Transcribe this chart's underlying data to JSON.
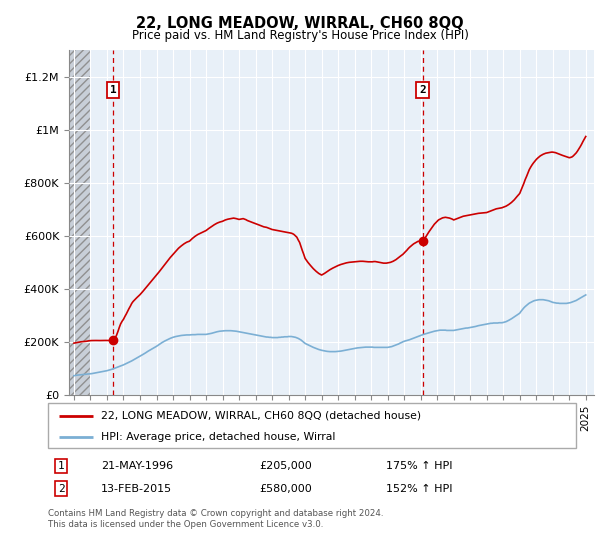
{
  "title": "22, LONG MEADOW, WIRRAL, CH60 8QQ",
  "subtitle": "Price paid vs. HM Land Registry's House Price Index (HPI)",
  "legend_line1": "22, LONG MEADOW, WIRRAL, CH60 8QQ (detached house)",
  "legend_line2": "HPI: Average price, detached house, Wirral",
  "annotation_footer": "Contains HM Land Registry data © Crown copyright and database right 2024.\nThis data is licensed under the Open Government Licence v3.0.",
  "point1_date": "21-MAY-1996",
  "point1_price": 205000,
  "point1_hpi_pct": "175%",
  "point1_year": 1996.38,
  "point2_date": "13-FEB-2015",
  "point2_price": 580000,
  "point2_hpi_pct": "152%",
  "point2_year": 2015.12,
  "red_color": "#cc0000",
  "blue_color": "#7bafd4",
  "chart_bg_color": "#e8f0f8",
  "hatch_color": "#b0b8c8",
  "ylim_min": 0,
  "ylim_max": 1300000,
  "xlim_min": 1993.7,
  "xlim_max": 2025.5,
  "hatch_end": 1995.0,
  "red_line_x": [
    1994.0,
    1994.08,
    1994.17,
    1994.25,
    1994.33,
    1994.42,
    1994.5,
    1994.58,
    1994.67,
    1994.75,
    1994.83,
    1994.92,
    1995.0,
    1995.08,
    1995.17,
    1995.25,
    1995.33,
    1995.42,
    1995.5,
    1995.58,
    1995.67,
    1995.75,
    1995.83,
    1995.92,
    1996.0,
    1996.08,
    1996.17,
    1996.25,
    1996.33,
    1996.38,
    1996.5,
    1996.58,
    1996.67,
    1996.75,
    1996.83,
    1996.92,
    1997.0,
    1997.08,
    1997.17,
    1997.25,
    1997.33,
    1997.42,
    1997.5,
    1997.58,
    1997.67,
    1997.75,
    1997.83,
    1997.92,
    1998.0,
    1998.17,
    1998.33,
    1998.5,
    1998.67,
    1998.83,
    1999.0,
    1999.17,
    1999.33,
    1999.5,
    1999.67,
    1999.83,
    2000.0,
    2000.17,
    2000.33,
    2000.5,
    2000.67,
    2000.83,
    2001.0,
    2001.17,
    2001.33,
    2001.5,
    2001.67,
    2001.83,
    2002.0,
    2002.17,
    2002.33,
    2002.5,
    2002.67,
    2002.83,
    2003.0,
    2003.17,
    2003.33,
    2003.5,
    2003.67,
    2003.83,
    2004.0,
    2004.08,
    2004.17,
    2004.25,
    2004.33,
    2004.42,
    2004.5,
    2004.58,
    2004.67,
    2004.75,
    2004.83,
    2004.92,
    2005.0,
    2005.08,
    2005.17,
    2005.25,
    2005.33,
    2005.42,
    2005.5,
    2005.58,
    2005.67,
    2005.75,
    2005.83,
    2005.92,
    2006.0,
    2006.08,
    2006.17,
    2006.25,
    2006.33,
    2006.42,
    2006.5,
    2006.58,
    2006.67,
    2006.75,
    2006.83,
    2006.92,
    2007.0,
    2007.08,
    2007.17,
    2007.25,
    2007.33,
    2007.42,
    2007.5,
    2007.58,
    2007.67,
    2007.75,
    2007.83,
    2007.92,
    2008.0,
    2008.17,
    2008.33,
    2008.5,
    2008.67,
    2008.83,
    2009.0,
    2009.17,
    2009.33,
    2009.5,
    2009.67,
    2009.83,
    2010.0,
    2010.17,
    2010.33,
    2010.5,
    2010.67,
    2010.83,
    2011.0,
    2011.17,
    2011.33,
    2011.5,
    2011.67,
    2011.83,
    2012.0,
    2012.08,
    2012.17,
    2012.25,
    2012.33,
    2012.42,
    2012.5,
    2012.58,
    2012.67,
    2012.75,
    2012.83,
    2012.92,
    2013.0,
    2013.08,
    2013.17,
    2013.25,
    2013.33,
    2013.42,
    2013.5,
    2013.58,
    2013.67,
    2013.75,
    2013.83,
    2013.92,
    2014.0,
    2014.08,
    2014.17,
    2014.25,
    2014.33,
    2014.42,
    2014.5,
    2014.58,
    2014.67,
    2014.75,
    2014.83,
    2014.92,
    2015.0,
    2015.12,
    2015.25,
    2015.33,
    2015.5,
    2015.67,
    2015.83,
    2016.0,
    2016.08,
    2016.17,
    2016.25,
    2016.33,
    2016.42,
    2016.5,
    2016.58,
    2016.67,
    2016.75,
    2016.83,
    2016.92,
    2017.0,
    2017.08,
    2017.17,
    2017.25,
    2017.33,
    2017.42,
    2017.5,
    2017.58,
    2017.67,
    2017.75,
    2017.83,
    2017.92,
    2018.0,
    2018.17,
    2018.33,
    2018.5,
    2018.67,
    2018.83,
    2019.0,
    2019.08,
    2019.17,
    2019.25,
    2019.33,
    2019.42,
    2019.5,
    2019.58,
    2019.67,
    2019.75,
    2019.83,
    2019.92,
    2020.0,
    2020.17,
    2020.33,
    2020.5,
    2020.67,
    2020.83,
    2021.0,
    2021.08,
    2021.17,
    2021.25,
    2021.33,
    2021.42,
    2021.5,
    2021.58,
    2021.67,
    2021.75,
    2021.83,
    2021.92,
    2022.0,
    2022.08,
    2022.17,
    2022.25,
    2022.33,
    2022.42,
    2022.5,
    2022.58,
    2022.67,
    2022.75,
    2022.83,
    2022.92,
    2023.0,
    2023.08,
    2023.17,
    2023.25,
    2023.33,
    2023.42,
    2023.5,
    2023.58,
    2023.67,
    2023.75,
    2023.83,
    2023.92,
    2024.0,
    2024.08,
    2024.17,
    2024.25,
    2024.33,
    2024.42,
    2024.5,
    2024.58,
    2024.67,
    2024.75,
    2024.83,
    2024.92,
    2025.0
  ],
  "red_line_y": [
    195000,
    196000,
    197000,
    198000,
    199000,
    200000,
    200500,
    201000,
    201500,
    202000,
    203000,
    204000,
    204500,
    204800,
    205000,
    205200,
    205000,
    204800,
    204600,
    204800,
    205000,
    205200,
    205300,
    205200,
    205000,
    205000,
    205000,
    205000,
    205000,
    205000,
    215000,
    225000,
    240000,
    255000,
    268000,
    278000,
    285000,
    295000,
    305000,
    315000,
    325000,
    335000,
    345000,
    352000,
    358000,
    363000,
    368000,
    373000,
    378000,
    390000,
    402000,
    415000,
    428000,
    440000,
    452000,
    465000,
    478000,
    492000,
    506000,
    518000,
    530000,
    542000,
    553000,
    562000,
    570000,
    576000,
    580000,
    590000,
    598000,
    605000,
    610000,
    615000,
    620000,
    628000,
    635000,
    642000,
    648000,
    652000,
    655000,
    660000,
    663000,
    665000,
    667000,
    665000,
    662000,
    663000,
    664000,
    665000,
    663000,
    661000,
    658000,
    656000,
    654000,
    652000,
    650000,
    648000,
    646000,
    644000,
    642000,
    640000,
    638000,
    636000,
    634000,
    633000,
    632000,
    630000,
    628000,
    626000,
    624000,
    623000,
    622000,
    621000,
    620000,
    619000,
    618000,
    617000,
    616000,
    615000,
    614000,
    613000,
    612000,
    611000,
    610000,
    608000,
    605000,
    600000,
    595000,
    585000,
    575000,
    560000,
    545000,
    530000,
    515000,
    500000,
    488000,
    476000,
    466000,
    458000,
    452000,
    458000,
    465000,
    472000,
    478000,
    483000,
    488000,
    492000,
    495000,
    498000,
    500000,
    501000,
    502000,
    503000,
    504000,
    504000,
    503000,
    502000,
    502000,
    502000,
    503000,
    503000,
    502000,
    501000,
    500000,
    499000,
    498000,
    497000,
    497000,
    497000,
    498000,
    499000,
    500000,
    502000,
    504000,
    507000,
    510000,
    514000,
    518000,
    522000,
    526000,
    530000,
    535000,
    540000,
    546000,
    552000,
    557000,
    562000,
    566000,
    570000,
    573000,
    576000,
    579000,
    580000,
    580000,
    580000,
    590000,
    598000,
    615000,
    630000,
    644000,
    655000,
    660000,
    663000,
    666000,
    668000,
    669000,
    670000,
    669000,
    668000,
    667000,
    665000,
    663000,
    660000,
    662000,
    664000,
    666000,
    668000,
    670000,
    672000,
    674000,
    675000,
    676000,
    677000,
    678000,
    679000,
    681000,
    683000,
    685000,
    686000,
    687000,
    688000,
    690000,
    692000,
    694000,
    696000,
    698000,
    700000,
    702000,
    703000,
    704000,
    705000,
    706000,
    708000,
    712000,
    718000,
    726000,
    736000,
    748000,
    760000,
    772000,
    785000,
    798000,
    812000,
    825000,
    838000,
    850000,
    860000,
    868000,
    875000,
    882000,
    888000,
    893000,
    898000,
    902000,
    905000,
    908000,
    910000,
    912000,
    913000,
    914000,
    915000,
    916000,
    916000,
    915000,
    914000,
    912000,
    910000,
    908000,
    906000,
    904000,
    902000,
    900000,
    898000,
    896000,
    895000,
    896000,
    898000,
    902000,
    907000,
    913000,
    920000,
    928000,
    937000,
    946000,
    956000,
    966000,
    975000
  ],
  "blue_line_x": [
    1994.0,
    1994.08,
    1994.17,
    1994.25,
    1994.33,
    1994.42,
    1994.5,
    1994.58,
    1994.67,
    1994.75,
    1994.83,
    1994.92,
    1995.0,
    1995.08,
    1995.17,
    1995.25,
    1995.33,
    1995.42,
    1995.5,
    1995.58,
    1995.67,
    1995.75,
    1995.83,
    1995.92,
    1996.0,
    1996.17,
    1996.33,
    1996.5,
    1996.67,
    1996.83,
    1997.0,
    1997.17,
    1997.33,
    1997.5,
    1997.67,
    1997.83,
    1998.0,
    1998.17,
    1998.33,
    1998.5,
    1998.67,
    1998.83,
    1999.0,
    1999.17,
    1999.33,
    1999.5,
    1999.67,
    1999.83,
    2000.0,
    2000.17,
    2000.33,
    2000.5,
    2000.67,
    2000.83,
    2001.0,
    2001.17,
    2001.33,
    2001.5,
    2001.67,
    2001.83,
    2002.0,
    2002.17,
    2002.33,
    2002.5,
    2002.67,
    2002.83,
    2003.0,
    2003.17,
    2003.33,
    2003.5,
    2003.67,
    2003.83,
    2004.0,
    2004.08,
    2004.17,
    2004.25,
    2004.33,
    2004.42,
    2004.5,
    2004.58,
    2004.67,
    2004.75,
    2004.83,
    2004.92,
    2005.0,
    2005.08,
    2005.17,
    2005.25,
    2005.33,
    2005.42,
    2005.5,
    2005.58,
    2005.67,
    2005.75,
    2005.83,
    2005.92,
    2006.0,
    2006.08,
    2006.17,
    2006.25,
    2006.33,
    2006.42,
    2006.5,
    2006.58,
    2006.67,
    2006.75,
    2006.83,
    2006.92,
    2007.0,
    2007.08,
    2007.17,
    2007.25,
    2007.33,
    2007.42,
    2007.5,
    2007.58,
    2007.67,
    2007.75,
    2007.83,
    2007.92,
    2008.0,
    2008.17,
    2008.33,
    2008.5,
    2008.67,
    2008.83,
    2009.0,
    2009.17,
    2009.33,
    2009.5,
    2009.67,
    2009.83,
    2010.0,
    2010.17,
    2010.33,
    2010.5,
    2010.67,
    2010.83,
    2011.0,
    2011.17,
    2011.33,
    2011.5,
    2011.67,
    2011.83,
    2012.0,
    2012.08,
    2012.17,
    2012.25,
    2012.33,
    2012.42,
    2012.5,
    2012.58,
    2012.67,
    2012.75,
    2012.83,
    2012.92,
    2013.0,
    2013.08,
    2013.17,
    2013.25,
    2013.33,
    2013.42,
    2013.5,
    2013.58,
    2013.67,
    2013.75,
    2013.83,
    2013.92,
    2014.0,
    2014.17,
    2014.33,
    2014.5,
    2014.67,
    2014.83,
    2015.0,
    2015.17,
    2015.33,
    2015.5,
    2015.67,
    2015.83,
    2016.0,
    2016.08,
    2016.17,
    2016.25,
    2016.33,
    2016.42,
    2016.5,
    2016.58,
    2016.67,
    2016.75,
    2016.83,
    2016.92,
    2017.0,
    2017.08,
    2017.17,
    2017.25,
    2017.33,
    2017.42,
    2017.5,
    2017.58,
    2017.67,
    2017.75,
    2017.83,
    2017.92,
    2018.0,
    2018.17,
    2018.33,
    2018.5,
    2018.67,
    2018.83,
    2019.0,
    2019.08,
    2019.17,
    2019.25,
    2019.33,
    2019.42,
    2019.5,
    2019.58,
    2019.67,
    2019.75,
    2019.83,
    2019.92,
    2020.0,
    2020.17,
    2020.33,
    2020.5,
    2020.67,
    2020.83,
    2021.0,
    2021.08,
    2021.17,
    2021.25,
    2021.33,
    2021.42,
    2021.5,
    2021.58,
    2021.67,
    2021.75,
    2021.83,
    2021.92,
    2022.0,
    2022.08,
    2022.17,
    2022.25,
    2022.33,
    2022.42,
    2022.5,
    2022.58,
    2022.67,
    2022.75,
    2022.83,
    2022.92,
    2023.0,
    2023.08,
    2023.17,
    2023.25,
    2023.33,
    2023.42,
    2023.5,
    2023.58,
    2023.67,
    2023.75,
    2023.83,
    2023.92,
    2024.0,
    2024.08,
    2024.17,
    2024.25,
    2024.33,
    2024.42,
    2024.5,
    2024.58,
    2024.67,
    2024.75,
    2024.83,
    2024.92,
    2025.0
  ],
  "blue_line_y": [
    72000,
    73000,
    74000,
    74500,
    75000,
    75500,
    76000,
    76500,
    77000,
    77500,
    78000,
    78500,
    79000,
    80000,
    81000,
    82000,
    83000,
    84000,
    85000,
    86000,
    87000,
    88000,
    89000,
    90000,
    91000,
    94000,
    97000,
    101000,
    105000,
    109000,
    113000,
    118000,
    123000,
    128000,
    134000,
    140000,
    146000,
    152000,
    158000,
    165000,
    171000,
    177000,
    183000,
    190000,
    197000,
    203000,
    208000,
    213000,
    217000,
    220000,
    222000,
    224000,
    225000,
    226000,
    226000,
    227000,
    227000,
    228000,
    228000,
    228000,
    228000,
    230000,
    232000,
    235000,
    238000,
    240000,
    241000,
    242000,
    242000,
    242000,
    241000,
    240000,
    238000,
    237000,
    236000,
    235000,
    234000,
    233000,
    232000,
    231000,
    230000,
    229000,
    228000,
    227000,
    226000,
    225000,
    224000,
    223000,
    222000,
    221000,
    220000,
    219000,
    218000,
    218000,
    217000,
    217000,
    216000,
    216000,
    216000,
    216000,
    216000,
    217000,
    217000,
    218000,
    218000,
    219000,
    219000,
    219000,
    220000,
    220000,
    220000,
    219000,
    218000,
    217000,
    215000,
    213000,
    210000,
    207000,
    203000,
    199000,
    194000,
    189000,
    184000,
    179000,
    175000,
    171000,
    168000,
    166000,
    164000,
    163000,
    163000,
    163000,
    164000,
    165000,
    167000,
    169000,
    171000,
    173000,
    175000,
    177000,
    178000,
    179000,
    180000,
    180000,
    180000,
    180000,
    179000,
    179000,
    179000,
    179000,
    179000,
    179000,
    179000,
    179000,
    179000,
    179000,
    179000,
    180000,
    181000,
    182000,
    184000,
    186000,
    188000,
    190000,
    192000,
    195000,
    197000,
    200000,
    202000,
    205000,
    208000,
    212000,
    216000,
    220000,
    224000,
    228000,
    231000,
    234000,
    237000,
    240000,
    242000,
    243000,
    244000,
    244000,
    244000,
    244000,
    244000,
    243000,
    243000,
    243000,
    243000,
    243000,
    243000,
    244000,
    245000,
    246000,
    247000,
    248000,
    249000,
    250000,
    251000,
    252000,
    252000,
    253000,
    254000,
    256000,
    258000,
    261000,
    263000,
    265000,
    267000,
    268000,
    269000,
    270000,
    270000,
    271000,
    271000,
    271000,
    271000,
    272000,
    272000,
    272000,
    273000,
    276000,
    281000,
    287000,
    294000,
    301000,
    308000,
    315000,
    322000,
    328000,
    333000,
    338000,
    342000,
    346000,
    349000,
    352000,
    354000,
    356000,
    357000,
    358000,
    359000,
    359000,
    359000,
    359000,
    358000,
    357000,
    356000,
    355000,
    353000,
    351000,
    349000,
    348000,
    347000,
    346000,
    346000,
    345000,
    345000,
    345000,
    345000,
    345000,
    345000,
    346000,
    347000,
    348000,
    350000,
    352000,
    354000,
    356000,
    359000,
    362000,
    365000,
    368000,
    371000,
    374000,
    377000
  ],
  "xticks": [
    1994,
    1995,
    1996,
    1997,
    1998,
    1999,
    2000,
    2001,
    2002,
    2003,
    2004,
    2005,
    2006,
    2007,
    2008,
    2009,
    2010,
    2011,
    2012,
    2013,
    2014,
    2015,
    2016,
    2017,
    2018,
    2019,
    2020,
    2021,
    2022,
    2023,
    2024,
    2025
  ],
  "yticks": [
    0,
    200000,
    400000,
    600000,
    800000,
    1000000,
    1200000
  ],
  "ytick_labels": [
    "£0",
    "£200K",
    "£400K",
    "£600K",
    "£800K",
    "£1M",
    "£1.2M"
  ]
}
